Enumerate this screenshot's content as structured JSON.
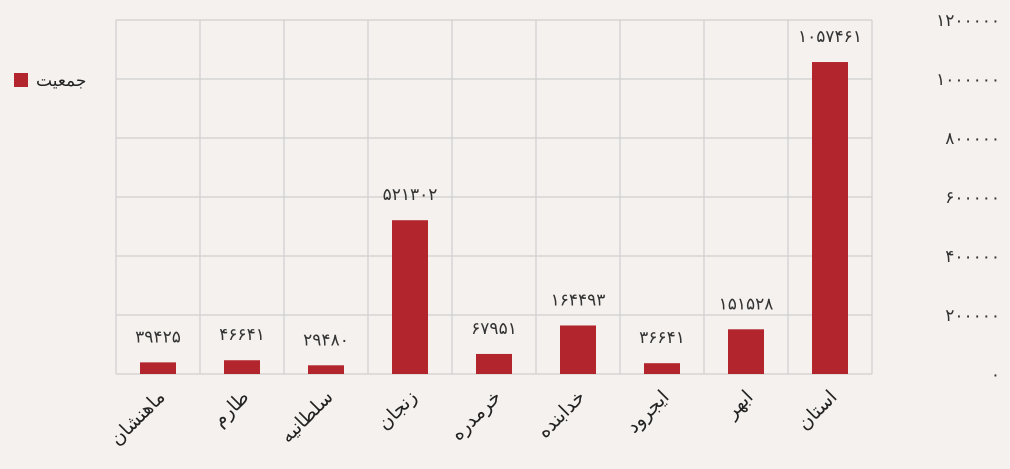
{
  "chart_data": {
    "type": "bar",
    "title": "",
    "xlabel": "",
    "ylabel": "",
    "categories": [
      "استان",
      "ابهر",
      "ایجرود",
      "خدابنده",
      "خرمدره",
      "زنجان",
      "سلطانیه",
      "طارم",
      "ماهنشان"
    ],
    "series": [
      {
        "name": "جمعیت",
        "values": [
          1057461,
          151528,
          36641,
          164493,
          67951,
          521302,
          29480,
          46641,
          39425
        ],
        "value_labels": [
          "۱۰۵۷۴۶۱",
          "۱۵۱۵۲۸",
          "۳۶۶۴۱",
          "۱۶۴۴۹۳",
          "۶۷۹۵۱",
          "۵۲۱۳۰۲",
          "۲۹۴۸۰",
          "۴۶۶۴۱",
          "۳۹۴۲۵"
        ],
        "color": "#b2252c"
      }
    ],
    "ylim": [
      0,
      1200000
    ],
    "yticks": [
      0,
      200000,
      400000,
      600000,
      800000,
      1000000,
      1200000
    ],
    "ytick_labels": [
      "۰",
      "۲۰۰۰۰۰",
      "۴۰۰۰۰۰",
      "۶۰۰۰۰۰",
      "۸۰۰۰۰۰",
      "۱۰۰۰۰۰۰",
      "۱۲۰۰۰۰۰"
    ],
    "axis_side": "right",
    "category_order": "right-to-left",
    "grid": true,
    "legend": {
      "position": "top-left",
      "label": "جمعیت"
    },
    "colors": {
      "bar": "#b2252c",
      "grid": "#cfcfcf",
      "background": "#f4f1ee"
    }
  }
}
